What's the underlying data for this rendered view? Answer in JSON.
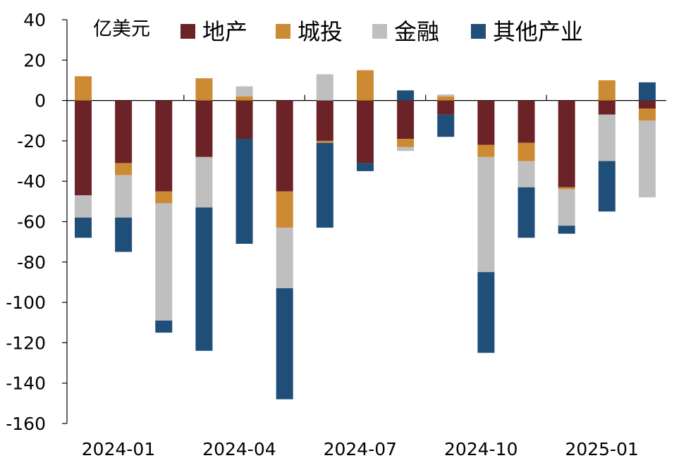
{
  "chart_data": {
    "type": "bar",
    "stacked": true,
    "unit_label": "亿美元",
    "ylim": [
      -160,
      40
    ],
    "y_ticks": [
      40,
      20,
      0,
      -20,
      -40,
      -60,
      -80,
      -100,
      -120,
      -140,
      -160
    ],
    "categories": [
      "2024-01",
      "2024-02",
      "2024-03",
      "2024-04",
      "2024-05",
      "2024-06",
      "2024-07",
      "2024-08",
      "2024-09",
      "2024-10",
      "2024-11",
      "2024-12",
      "2025-01",
      "2025-02",
      "2025-03"
    ],
    "x_tick_labels": [
      {
        "index": 0,
        "label": "2024-01"
      },
      {
        "index": 3,
        "label": "2024-04"
      },
      {
        "index": 6,
        "label": "2024-07"
      },
      {
        "index": 9,
        "label": "2024-10"
      },
      {
        "index": 12,
        "label": "2025-01"
      }
    ],
    "legend_position": "top",
    "series": [
      {
        "name": "地产",
        "color": "#6b2328",
        "values": [
          -47,
          -31,
          -45,
          -28,
          -19,
          -45,
          -20,
          -31,
          -19,
          -7,
          -22,
          -21,
          -43,
          -7,
          -4
        ]
      },
      {
        "name": "城投",
        "color": "#cc8a33",
        "values": [
          12,
          -6,
          -6,
          11,
          2,
          -18,
          -1,
          15,
          -4,
          2,
          -6,
          -9,
          -1,
          10,
          -6
        ]
      },
      {
        "name": "金融",
        "color": "#bfbfbf",
        "values": [
          -11,
          -21,
          -58,
          -25,
          5,
          -30,
          13,
          0,
          -2,
          1,
          -57,
          -13,
          -18,
          -23,
          -38
        ]
      },
      {
        "name": "其他产业",
        "color": "#1f4e79",
        "values": [
          -10,
          -17,
          -6,
          -71,
          -52,
          -55,
          -42,
          -4,
          5,
          -11,
          -40,
          -25,
          -4,
          -25,
          9
        ]
      }
    ]
  }
}
